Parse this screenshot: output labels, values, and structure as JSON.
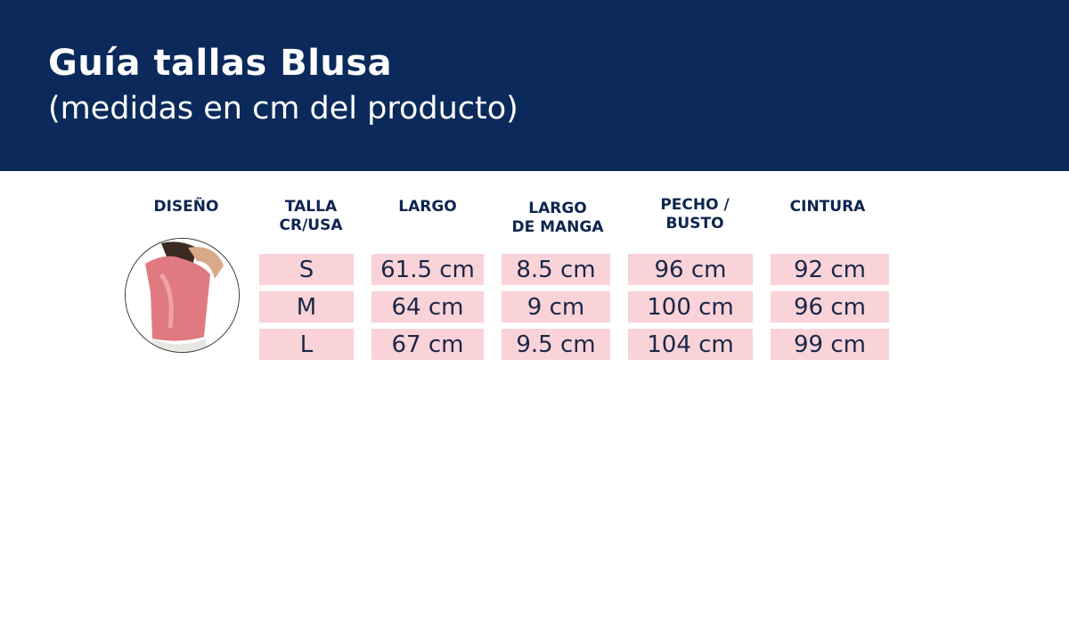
{
  "header": {
    "title": "Guía tallas Blusa",
    "subtitle": "(medidas en cm del producto)"
  },
  "columns": [
    "DISEÑO",
    "TALLA\nCR/USA",
    "LARGO",
    "LARGO\nDE MANGA",
    "PECHO /\nBUSTO",
    "CINTURA"
  ],
  "rows": [
    [
      "S",
      "61.5 cm",
      "8.5 cm",
      "96 cm",
      "92 cm"
    ],
    [
      "M",
      "64 cm",
      "9 cm",
      "100 cm",
      "96 cm"
    ],
    [
      "L",
      "67 cm",
      "9.5 cm",
      "104 cm",
      "99 cm"
    ]
  ],
  "colors": {
    "header": "#0b2a5b",
    "cell": "#f9d3d8"
  }
}
